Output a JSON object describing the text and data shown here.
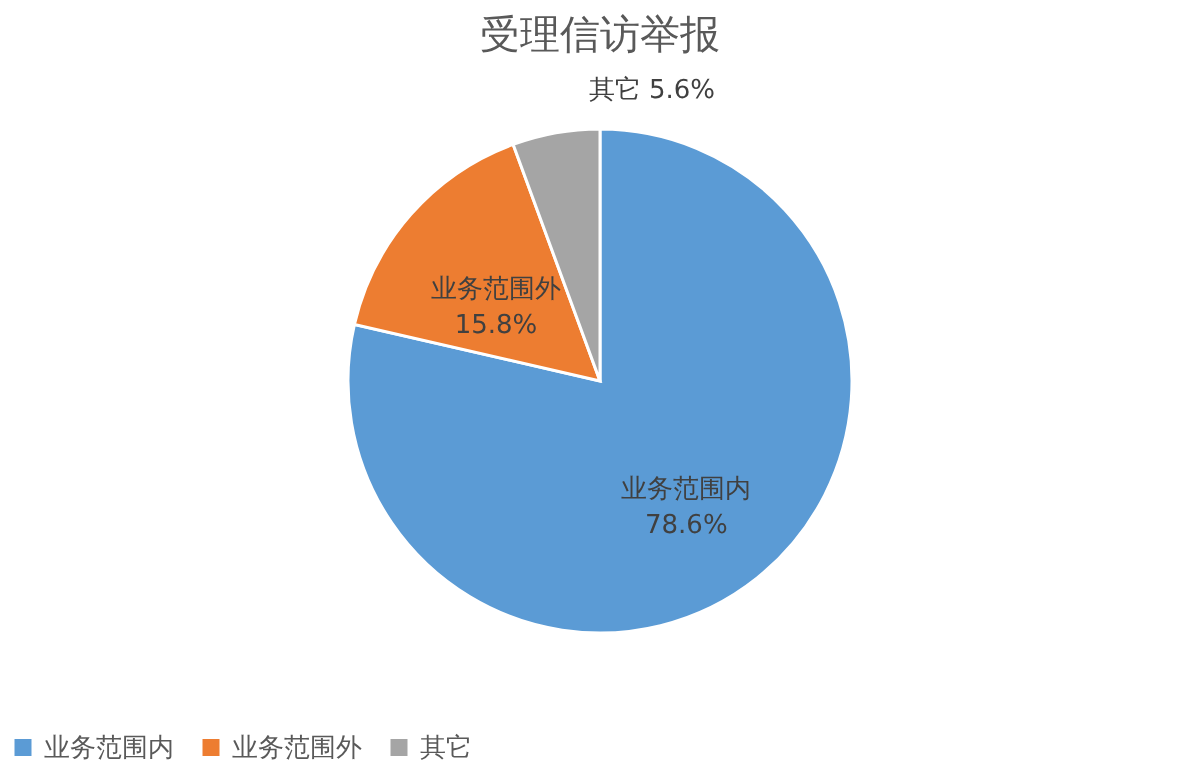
{
  "chart_data": {
    "type": "pie",
    "title": "受理信访举报",
    "categories": [
      "业务范围内",
      "业务范围外",
      "其它"
    ],
    "values": [
      78.6,
      15.8,
      5.6
    ],
    "colors": [
      "#5b9bd5",
      "#ed7d31",
      "#a5a5a5"
    ],
    "value_labels": [
      "78.6%",
      "15.8%",
      "5.6%"
    ],
    "legend": "bottom"
  }
}
